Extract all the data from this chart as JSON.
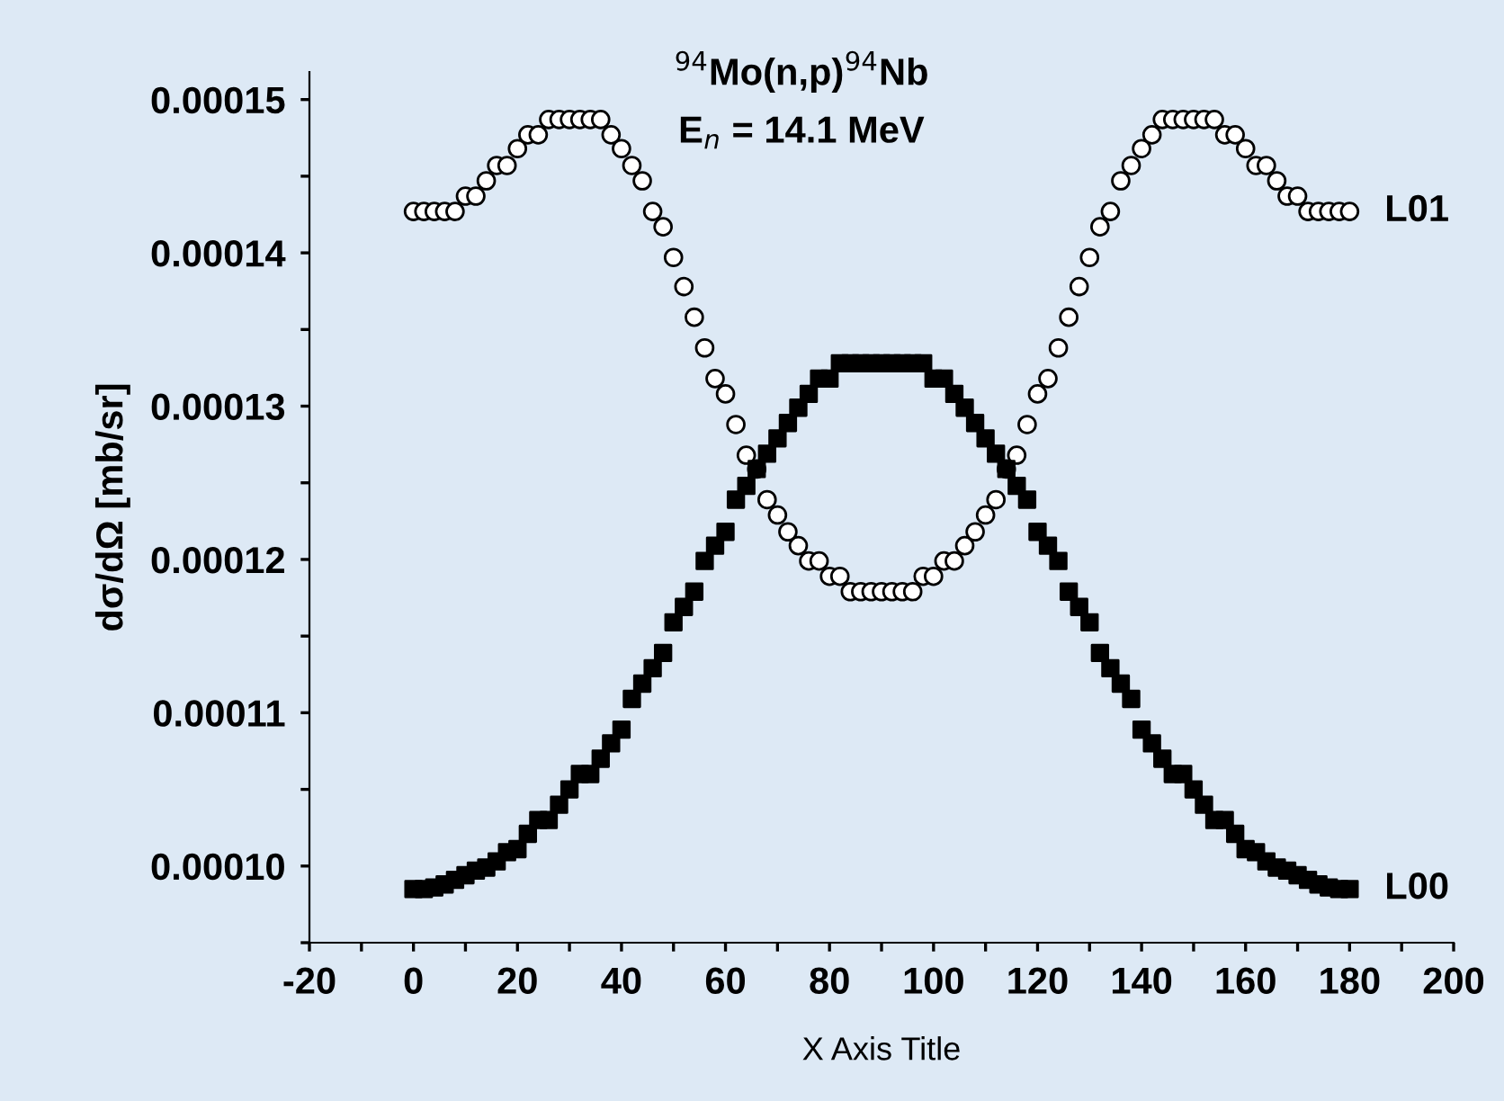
{
  "chart_data": {
    "type": "scatter",
    "title": "$^{94}$Mo(n,p)$^{94}$Nb",
    "subtitle": "E$_{n}$ = 14.1 MeV",
    "xlabel": "X Axis Title",
    "ylabel": "dσ/dΩ [mb/sr]",
    "x": [
      0,
      2,
      4,
      6,
      8,
      10,
      12,
      14,
      16,
      18,
      20,
      22,
      24,
      26,
      28,
      30,
      32,
      34,
      36,
      38,
      40,
      42,
      44,
      46,
      48,
      50,
      52,
      54,
      56,
      58,
      60,
      62,
      64,
      66,
      68,
      70,
      72,
      74,
      76,
      78,
      80,
      82,
      84,
      86,
      88,
      90,
      92,
      94,
      96,
      98,
      100,
      102,
      104,
      106,
      108,
      110,
      112,
      114,
      116,
      118,
      120,
      122,
      124,
      126,
      128,
      130,
      132,
      134,
      136,
      138,
      140,
      142,
      144,
      146,
      148,
      150,
      152,
      154,
      156,
      158,
      160,
      162,
      164,
      166,
      168,
      170,
      172,
      174,
      176,
      178,
      180
    ],
    "series": [
      {
        "name": "L01",
        "color": "#ffffff",
        "marker": "circle",
        "values": [
          0.0001427,
          0.0001427,
          0.0001427,
          0.0001427,
          0.0001427,
          0.0001437,
          0.0001437,
          0.0001447,
          0.0001457,
          0.0001457,
          0.0001468,
          0.0001477,
          0.0001477,
          0.0001487,
          0.0001487,
          0.0001487,
          0.0001487,
          0.0001487,
          0.0001487,
          0.0001477,
          0.0001468,
          0.0001457,
          0.0001447,
          0.0001427,
          0.0001417,
          0.0001397,
          0.0001378,
          0.0001358,
          0.0001338,
          0.0001318,
          0.0001308,
          0.0001288,
          0.0001268,
          0.0001259,
          0.0001239,
          0.0001229,
          0.0001218,
          0.0001209,
          0.0001199,
          0.0001199,
          0.0001189,
          0.0001189,
          0.0001179,
          0.0001179,
          0.0001179,
          0.0001179,
          0.0001179,
          0.0001179,
          0.0001179,
          0.0001189,
          0.0001189,
          0.0001199,
          0.0001199,
          0.0001209,
          0.0001218,
          0.0001229,
          0.0001239,
          0.0001259,
          0.0001268,
          0.0001288,
          0.0001308,
          0.0001318,
          0.0001338,
          0.0001358,
          0.0001378,
          0.0001397,
          0.0001417,
          0.0001427,
          0.0001447,
          0.0001457,
          0.0001468,
          0.0001477,
          0.0001487,
          0.0001487,
          0.0001487,
          0.0001487,
          0.0001487,
          0.0001487,
          0.0001477,
          0.0001477,
          0.0001468,
          0.0001457,
          0.0001457,
          0.0001447,
          0.0001437,
          0.0001437,
          0.0001427,
          0.0001427,
          0.0001427,
          0.0001427,
          0.0001427
        ]
      },
      {
        "name": "L00",
        "color": "#000000",
        "marker": "square",
        "values": [
          9.85e-05,
          9.85e-05,
          9.86e-05,
          9.88e-05,
          9.91e-05,
          9.94e-05,
          9.97e-05,
          9.99e-05,
          0.0001003,
          0.0001009,
          0.0001011,
          0.0001021,
          0.000103,
          0.000103,
          0.000104,
          0.000105,
          0.000106,
          0.000106,
          0.000107,
          0.000108,
          0.0001089,
          0.0001109,
          0.0001119,
          0.0001129,
          0.0001139,
          0.0001159,
          0.0001169,
          0.0001179,
          0.0001199,
          0.0001209,
          0.0001218,
          0.0001239,
          0.0001248,
          0.0001259,
          0.0001269,
          0.0001279,
          0.0001289,
          0.0001299,
          0.0001308,
          0.0001318,
          0.0001318,
          0.0001328,
          0.0001328,
          0.0001328,
          0.0001328,
          0.0001328,
          0.0001328,
          0.0001328,
          0.0001328,
          0.0001328,
          0.0001318,
          0.0001318,
          0.0001308,
          0.0001299,
          0.0001289,
          0.0001279,
          0.0001269,
          0.0001259,
          0.0001248,
          0.0001239,
          0.0001218,
          0.0001209,
          0.0001199,
          0.0001179,
          0.0001169,
          0.0001159,
          0.0001139,
          0.0001129,
          0.0001119,
          0.0001109,
          0.0001089,
          0.000108,
          0.000107,
          0.000106,
          0.000106,
          0.000105,
          0.000104,
          0.000103,
          0.000103,
          0.0001021,
          0.0001011,
          0.0001009,
          0.0001003,
          9.99e-05,
          9.97e-05,
          9.94e-05,
          9.91e-05,
          9.88e-05,
          9.86e-05,
          9.85e-05,
          9.85e-05
        ]
      }
    ],
    "xlim": [
      -20,
      200
    ],
    "xticks": [
      -20,
      {
        "value": -10,
        "label": null
      },
      0,
      {
        "value": 10,
        "label": null
      },
      20,
      {
        "value": 30,
        "label": null
      },
      40,
      {
        "value": 50,
        "label": null
      },
      60,
      {
        "value": 70,
        "label": null
      },
      80,
      {
        "value": 90,
        "label": null
      },
      100,
      {
        "value": 110,
        "label": null
      },
      120,
      {
        "value": 130,
        "label": null
      },
      140,
      {
        "value": 150,
        "label": null
      },
      160,
      {
        "value": 170,
        "label": null
      },
      180,
      {
        "value": 190,
        "label": null
      },
      200
    ],
    "ylim": [
      9.5e-05,
      0.0001518
    ],
    "yticks": [
      {
        "value": 9.5e-05,
        "label": null
      },
      {
        "value": 0.0001,
        "label": "0.00010"
      },
      {
        "value": 0.000105,
        "label": null
      },
      {
        "value": 0.00011,
        "label": "0.00011"
      },
      {
        "value": 0.000115,
        "label": null
      },
      {
        "value": 0.00012,
        "label": "0.00012"
      },
      {
        "value": 0.000125,
        "label": null
      },
      {
        "value": 0.00013,
        "label": "0.00013"
      },
      {
        "value": 0.000135,
        "label": null
      },
      {
        "value": 0.00014,
        "label": "0.00014"
      },
      {
        "value": 0.000145,
        "label": null
      },
      {
        "value": 0.00015,
        "label": "0.00015"
      }
    ],
    "grid": false,
    "legend": false
  }
}
